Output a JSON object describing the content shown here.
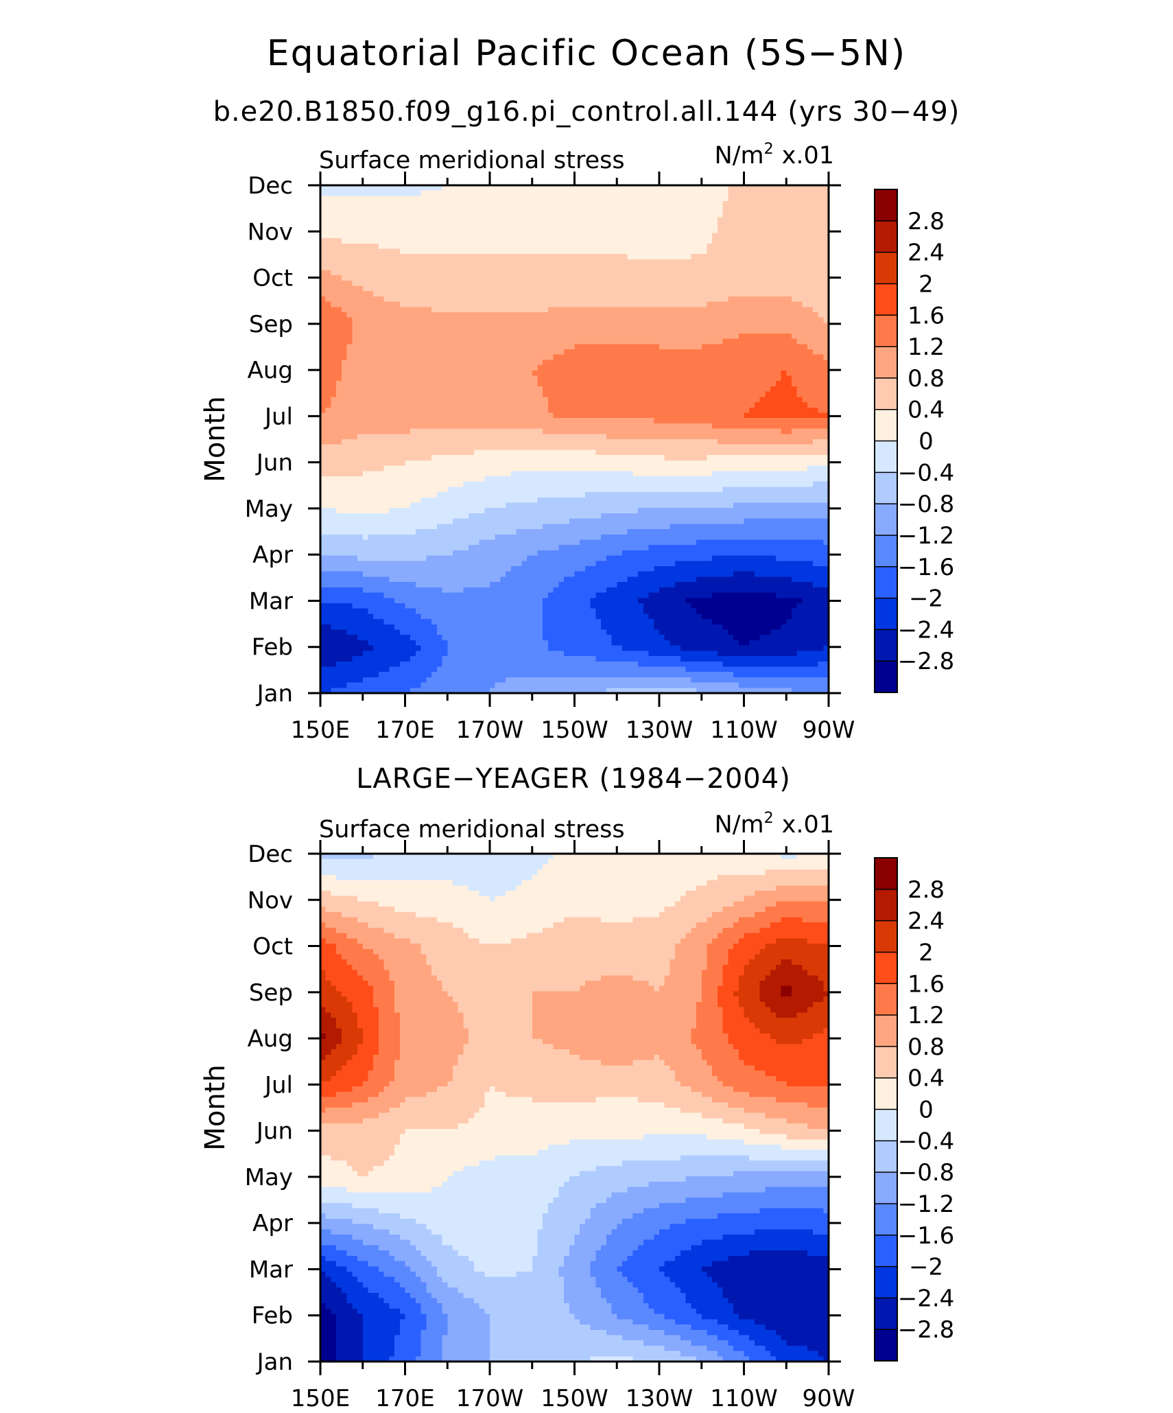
{
  "title": "Equatorial Pacific Ocean (5S−5N)",
  "panels": [
    {
      "id": "model",
      "header": "b.e20.B1850.f09_g16.pi_control.all.144 (yrs 30−49)",
      "field_label": "Surface meridional stress",
      "units_main": "N/m",
      "units_exp": "2",
      "units_scale": "x.01"
    },
    {
      "id": "obs",
      "header": "LARGE−YEAGER (1984−2004)",
      "field_label": "Surface meridional stress",
      "units_main": "N/m",
      "units_exp": "2",
      "units_scale": "x.01"
    }
  ],
  "colorbar": {
    "labels": [
      "2.8",
      "2.4",
      "2",
      "1.6",
      "1.2",
      "0.8",
      "0.4",
      "0",
      "−0.4",
      "−0.8",
      "−1.2",
      "−1.6",
      "−2",
      "−2.4",
      "−2.8"
    ],
    "colors": [
      "#8b0000",
      "#b31a00",
      "#d93a05",
      "#ff4d1a",
      "#ff7a4a",
      "#ffa680",
      "#ffcbb0",
      "#fff0e0",
      "#d6e8ff",
      "#b0ccff",
      "#88aaff",
      "#5a88ff",
      "#2a60ff",
      "#0037e0",
      "#0018b0",
      "#000090"
    ]
  },
  "chart_data": [
    {
      "type": "heatmap",
      "title": "Surface meridional stress",
      "subtitle": "b.e20.B1850.f09_g16.pi_control.all.144 (yrs 30−49)",
      "units": "N/m² x.01",
      "xlabel": "",
      "ylabel": "Month",
      "x_ticks": [
        "150E",
        "170E",
        "170W",
        "150W",
        "130W",
        "110W",
        "90W"
      ],
      "x": [
        150,
        160,
        170,
        180,
        190,
        200,
        210,
        220,
        230,
        240,
        250,
        260,
        270
      ],
      "y_ticks": [
        "Jan",
        "Feb",
        "Mar",
        "Apr",
        "May",
        "Jun",
        "Jul",
        "Aug",
        "Sep",
        "Oct",
        "Nov",
        "Dec"
      ],
      "contour_levels": [
        -2.8,
        -2.4,
        -2,
        -1.6,
        -1.2,
        -0.8,
        -0.4,
        0,
        0.4,
        0.8,
        1.2,
        1.6,
        2,
        2.4,
        2.8
      ],
      "z": [
        [
          -2.0,
          -1.8,
          -1.6,
          -1.4,
          -1.2,
          -1.0,
          -0.8,
          -0.7,
          -0.6,
          -0.7,
          -0.9,
          -1.1,
          -1.2
        ],
        [
          -2.8,
          -2.5,
          -2.2,
          -1.6,
          -1.3,
          -1.5,
          -1.8,
          -2.0,
          -2.3,
          -2.6,
          -2.8,
          -2.7,
          -2.4
        ],
        [
          -2.0,
          -1.9,
          -1.5,
          -1.3,
          -1.3,
          -1.5,
          -1.9,
          -2.2,
          -2.6,
          -2.9,
          -3.0,
          -2.9,
          -2.6
        ],
        [
          -0.8,
          -0.7,
          -0.7,
          -0.8,
          -1.0,
          -1.2,
          -1.4,
          -1.6,
          -1.8,
          -1.9,
          -2.0,
          -1.9,
          -1.8
        ],
        [
          0.0,
          0.1,
          0.0,
          -0.2,
          -0.4,
          -0.5,
          -0.6,
          -0.7,
          -0.8,
          -0.8,
          -0.9,
          -1.0,
          -1.0
        ],
        [
          0.6,
          0.5,
          0.4,
          0.3,
          0.2,
          0.1,
          0.1,
          0.2,
          0.3,
          0.3,
          0.2,
          0.2,
          0.1
        ],
        [
          1.2,
          1.0,
          1.0,
          1.0,
          1.0,
          1.1,
          1.3,
          1.3,
          1.3,
          1.4,
          1.6,
          1.7,
          1.6
        ],
        [
          1.4,
          1.0,
          1.0,
          1.0,
          1.0,
          1.2,
          1.4,
          1.5,
          1.4,
          1.4,
          1.5,
          1.6,
          1.3
        ],
        [
          1.6,
          1.1,
          1.0,
          0.9,
          0.9,
          0.9,
          1.0,
          1.0,
          1.0,
          1.0,
          1.1,
          1.1,
          0.8
        ],
        [
          0.9,
          0.7,
          0.5,
          0.5,
          0.5,
          0.5,
          0.5,
          0.5,
          0.5,
          0.5,
          0.6,
          0.6,
          0.5
        ],
        [
          0.3,
          0.3,
          0.3,
          0.3,
          0.3,
          0.3,
          0.3,
          0.3,
          0.2,
          0.3,
          0.6,
          0.6,
          0.6
        ],
        [
          -0.1,
          -0.1,
          -0.1,
          0.0,
          0.1,
          0.1,
          0.1,
          0.1,
          0.1,
          0.2,
          0.5,
          0.5,
          0.5
        ]
      ]
    },
    {
      "type": "heatmap",
      "title": "Surface meridional stress",
      "subtitle": "LARGE−YEAGER (1984−2004)",
      "units": "N/m² x.01",
      "xlabel": "",
      "ylabel": "Month",
      "x_ticks": [
        "150E",
        "170E",
        "170W",
        "150W",
        "130W",
        "110W",
        "90W"
      ],
      "x": [
        150,
        160,
        170,
        180,
        190,
        200,
        210,
        220,
        230,
        240,
        250,
        260,
        270
      ],
      "y_ticks": [
        "Jan",
        "Feb",
        "Mar",
        "Apr",
        "May",
        "Jun",
        "Jul",
        "Aug",
        "Sep",
        "Oct",
        "Nov",
        "Dec"
      ],
      "contour_levels": [
        -2.8,
        -2.4,
        -2,
        -1.6,
        -1.2,
        -0.8,
        -0.4,
        0,
        0.4,
        0.8,
        1.2,
        1.6,
        2,
        2.4,
        2.8
      ],
      "z": [
        [
          -3.0,
          -2.4,
          -1.8,
          -1.1,
          -0.8,
          -0.5,
          -0.4,
          -0.3,
          -0.4,
          -0.8,
          -1.4,
          -2.2,
          -2.4
        ],
        [
          -3.0,
          -2.4,
          -2.0,
          -1.2,
          -0.8,
          -0.6,
          -0.8,
          -1.2,
          -1.6,
          -2.0,
          -2.5,
          -2.7,
          -2.6
        ],
        [
          -2.4,
          -1.8,
          -1.3,
          -0.6,
          -0.3,
          -0.4,
          -1.0,
          -1.6,
          -2.0,
          -2.4,
          -2.7,
          -2.8,
          -2.6
        ],
        [
          -1.0,
          -0.8,
          -0.5,
          -0.2,
          -0.2,
          -0.3,
          -0.7,
          -1.2,
          -1.5,
          -1.7,
          -1.8,
          -1.9,
          -1.8
        ],
        [
          0.2,
          0.4,
          0.3,
          0.0,
          -0.2,
          -0.2,
          -0.4,
          -0.6,
          -0.7,
          -0.8,
          -0.9,
          -1.0,
          -1.0
        ],
        [
          0.6,
          0.6,
          0.4,
          0.4,
          0.3,
          0.2,
          0.1,
          0.1,
          0.1,
          0.1,
          0.3,
          0.6,
          0.8
        ],
        [
          2.0,
          1.6,
          1.0,
          0.8,
          0.4,
          0.5,
          0.6,
          0.5,
          0.6,
          1.0,
          1.4,
          1.6,
          1.6
        ],
        [
          2.9,
          2.0,
          1.1,
          1.0,
          0.6,
          0.8,
          0.9,
          1.2,
          0.9,
          1.3,
          1.8,
          2.1,
          1.9
        ],
        [
          2.2,
          1.8,
          1.0,
          0.8,
          0.6,
          0.8,
          0.8,
          1.0,
          0.8,
          1.2,
          2.2,
          2.9,
          2.4
        ],
        [
          1.8,
          1.2,
          0.9,
          0.6,
          0.4,
          0.5,
          0.6,
          0.5,
          0.6,
          1.1,
          1.8,
          2.2,
          2.0
        ],
        [
          0.6,
          0.4,
          0.2,
          0.2,
          0.0,
          0.1,
          0.3,
          0.3,
          0.3,
          0.5,
          0.8,
          1.2,
          1.2
        ],
        [
          -0.6,
          -0.5,
          -0.3,
          -0.3,
          -0.3,
          -0.1,
          0.1,
          0.2,
          0.2,
          0.2,
          0.1,
          -0.1,
          0.0
        ]
      ]
    }
  ]
}
